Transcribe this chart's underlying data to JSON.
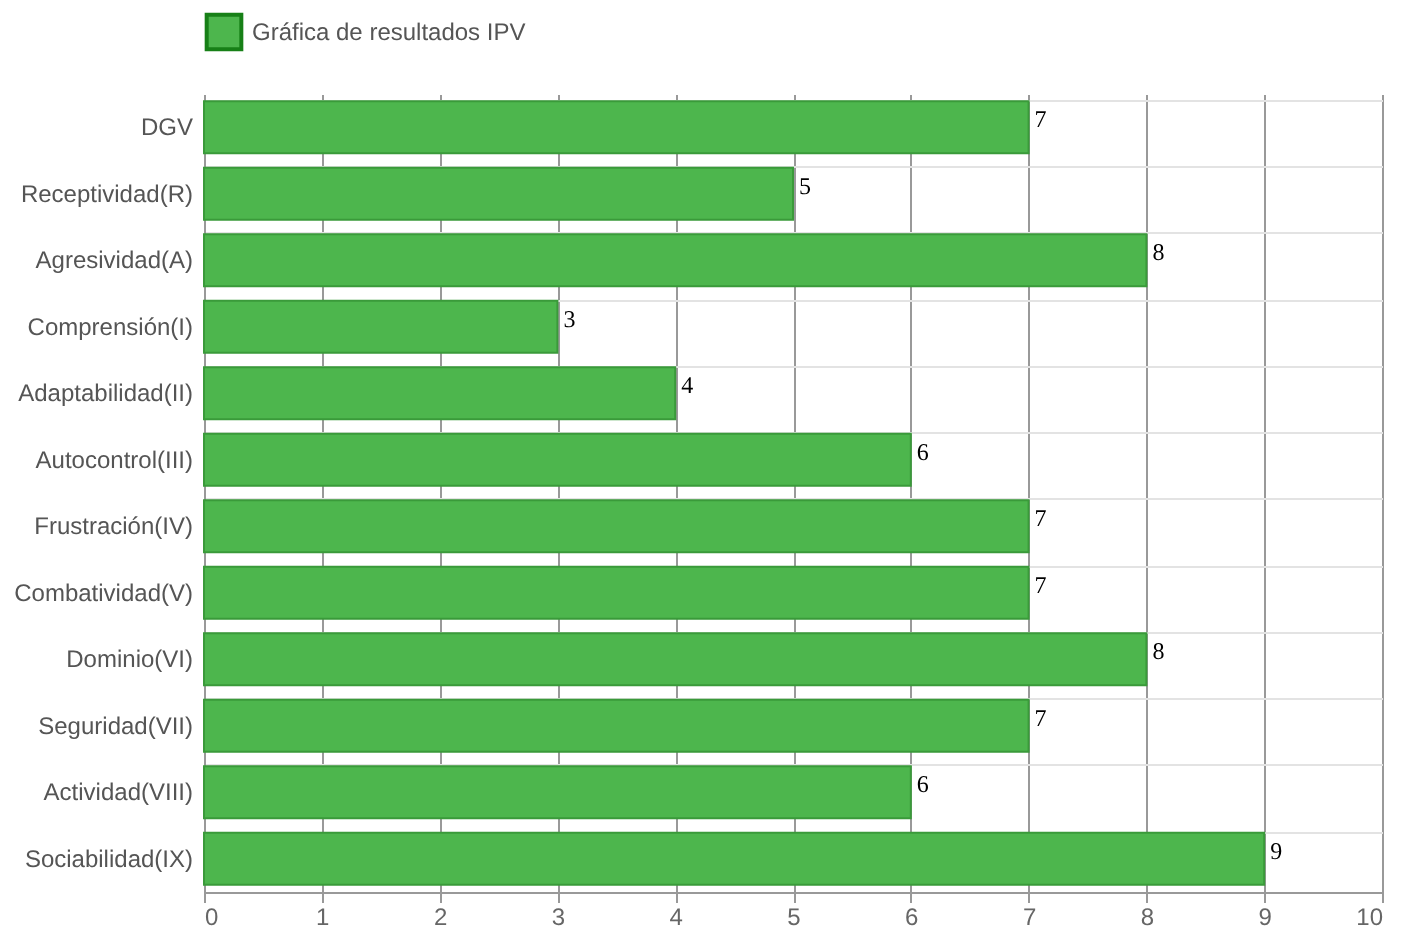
{
  "chart_data": {
    "type": "bar",
    "orientation": "horizontal",
    "categories": [
      "DGV",
      "Receptividad(R)",
      "Agresividad(A)",
      "Comprensión(I)",
      "Adaptabilidad(II)",
      "Autocontrol(III)",
      "Frustración(IV)",
      "Combatividad(V)",
      "Dominio(VI)",
      "Seguridad(VII)",
      "Actividad(VIII)",
      "Sociabilidad(IX)"
    ],
    "series": [
      {
        "name": "Gráfica de resultados IPV",
        "color": "#4db64d",
        "values": [
          7,
          5,
          8,
          3,
          4,
          6,
          7,
          7,
          8,
          7,
          6,
          9
        ]
      }
    ],
    "xlim": [
      0,
      10
    ],
    "xticks": [
      0,
      1,
      2,
      3,
      4,
      5,
      6,
      7,
      8,
      9,
      10
    ],
    "grid": true,
    "legend": "top",
    "data_labels": true
  }
}
